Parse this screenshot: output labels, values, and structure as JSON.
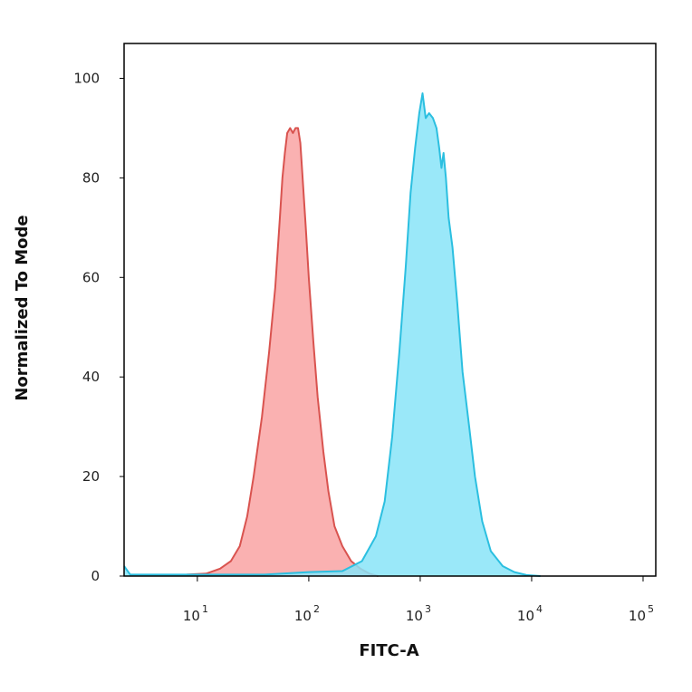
{
  "chart_data": {
    "type": "area",
    "xlabel": "FITC-A",
    "ylabel": "Normalized To Mode",
    "xscale": "log",
    "xlim": [
      2.2,
      130000
    ],
    "ylim": [
      0,
      107
    ],
    "x_ticks": [
      {
        "value": 10,
        "base": "10",
        "exp": "1"
      },
      {
        "value": 100,
        "base": "10",
        "exp": "2"
      },
      {
        "value": 1000,
        "base": "10",
        "exp": "3"
      },
      {
        "value": 10000,
        "base": "10",
        "exp": "4"
      },
      {
        "value": 100000,
        "base": "10",
        "exp": "5"
      }
    ],
    "y_ticks": [
      0,
      20,
      40,
      60,
      80,
      100
    ],
    "series": [
      {
        "fill": "#f9a3a3",
        "stroke": "#d9534f",
        "points": [
          [
            8,
            0.3
          ],
          [
            12,
            0.5
          ],
          [
            16,
            1.5
          ],
          [
            20,
            3
          ],
          [
            24,
            6
          ],
          [
            28,
            12
          ],
          [
            32,
            20
          ],
          [
            38,
            32
          ],
          [
            44,
            45
          ],
          [
            50,
            58
          ],
          [
            55,
            72
          ],
          [
            58,
            80
          ],
          [
            61,
            85
          ],
          [
            64,
            89
          ],
          [
            68,
            90
          ],
          [
            72,
            89
          ],
          [
            76,
            90
          ],
          [
            80,
            90
          ],
          [
            84,
            87
          ],
          [
            88,
            80
          ],
          [
            94,
            70
          ],
          [
            100,
            60
          ],
          [
            110,
            47
          ],
          [
            120,
            36
          ],
          [
            135,
            25
          ],
          [
            150,
            17
          ],
          [
            170,
            10
          ],
          [
            200,
            6
          ],
          [
            240,
            3
          ],
          [
            290,
            1.5
          ],
          [
            350,
            0.5
          ],
          [
            420,
            0
          ]
        ]
      },
      {
        "fill": "#88e4f8",
        "stroke": "#2bbfe0",
        "points": [
          [
            2.2,
            2
          ],
          [
            2.5,
            0.3
          ],
          [
            40,
            0.3
          ],
          [
            100,
            0.8
          ],
          [
            200,
            1
          ],
          [
            300,
            3
          ],
          [
            400,
            8
          ],
          [
            480,
            15
          ],
          [
            560,
            28
          ],
          [
            650,
            45
          ],
          [
            740,
            62
          ],
          [
            820,
            77
          ],
          [
            900,
            86
          ],
          [
            980,
            93
          ],
          [
            1050,
            97
          ],
          [
            1120,
            92
          ],
          [
            1200,
            93
          ],
          [
            1300,
            92
          ],
          [
            1400,
            90
          ],
          [
            1480,
            86
          ],
          [
            1550,
            82
          ],
          [
            1620,
            85
          ],
          [
            1700,
            80
          ],
          [
            1800,
            72
          ],
          [
            1950,
            66
          ],
          [
            2150,
            55
          ],
          [
            2400,
            41
          ],
          [
            2750,
            30
          ],
          [
            3100,
            20
          ],
          [
            3600,
            11
          ],
          [
            4300,
            5
          ],
          [
            5500,
            2
          ],
          [
            7000,
            0.8
          ],
          [
            9000,
            0.2
          ],
          [
            12000,
            0
          ]
        ]
      }
    ]
  }
}
